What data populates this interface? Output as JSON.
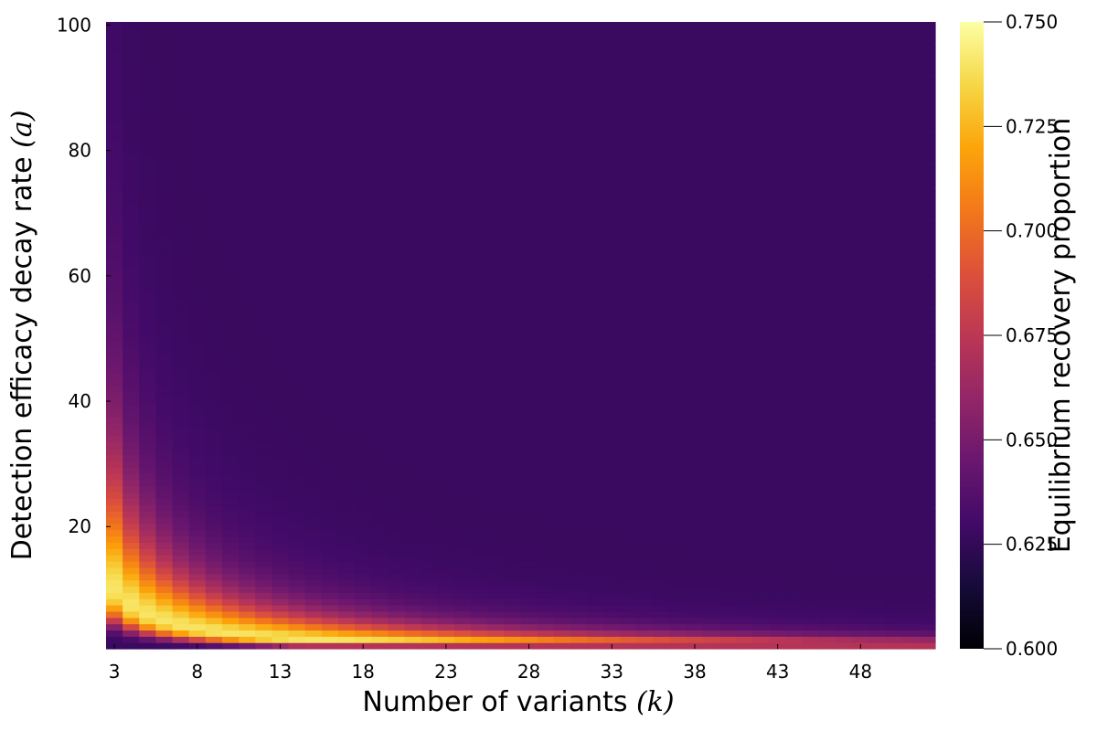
{
  "chart_data": {
    "type": "heatmap",
    "title": "",
    "xlabel": "Number of variants ",
    "xlabel_math": "(k)",
    "ylabel": "Detection efficacy decay rate ",
    "ylabel_math": "(a)",
    "xlim": [
      3,
      52
    ],
    "ylim": [
      1,
      100
    ],
    "x_ticks": [
      3,
      8,
      13,
      18,
      23,
      28,
      33,
      38,
      43,
      48
    ],
    "x_tick_labels": [
      "3",
      "8",
      "13",
      "18",
      "23",
      "28",
      "33",
      "38",
      "43",
      "48"
    ],
    "y_ticks": [
      20,
      40,
      60,
      80,
      100
    ],
    "y_tick_labels": [
      "20",
      "40",
      "60",
      "80",
      "100"
    ],
    "colorbar": {
      "label": "Equilibrium recovery proportion",
      "colormap": "inferno",
      "range": [
        0.6,
        0.75
      ],
      "ticks": [
        0.6,
        0.625,
        0.65,
        0.675,
        0.7,
        0.725,
        0.75
      ],
      "tick_labels": [
        "0.600",
        "0.625",
        "0.650",
        "0.675",
        "0.700",
        "0.725",
        "0.750"
      ]
    },
    "grid": false,
    "k_values": [
      3,
      52,
      1
    ],
    "a_values": [
      1,
      100,
      1
    ],
    "surface_description_values": {
      "peak_value": 0.74,
      "peak_ridge_product_k_a": 30,
      "low_plateau_value": 0.627,
      "edge_value_small_a": 0.672
    }
  }
}
